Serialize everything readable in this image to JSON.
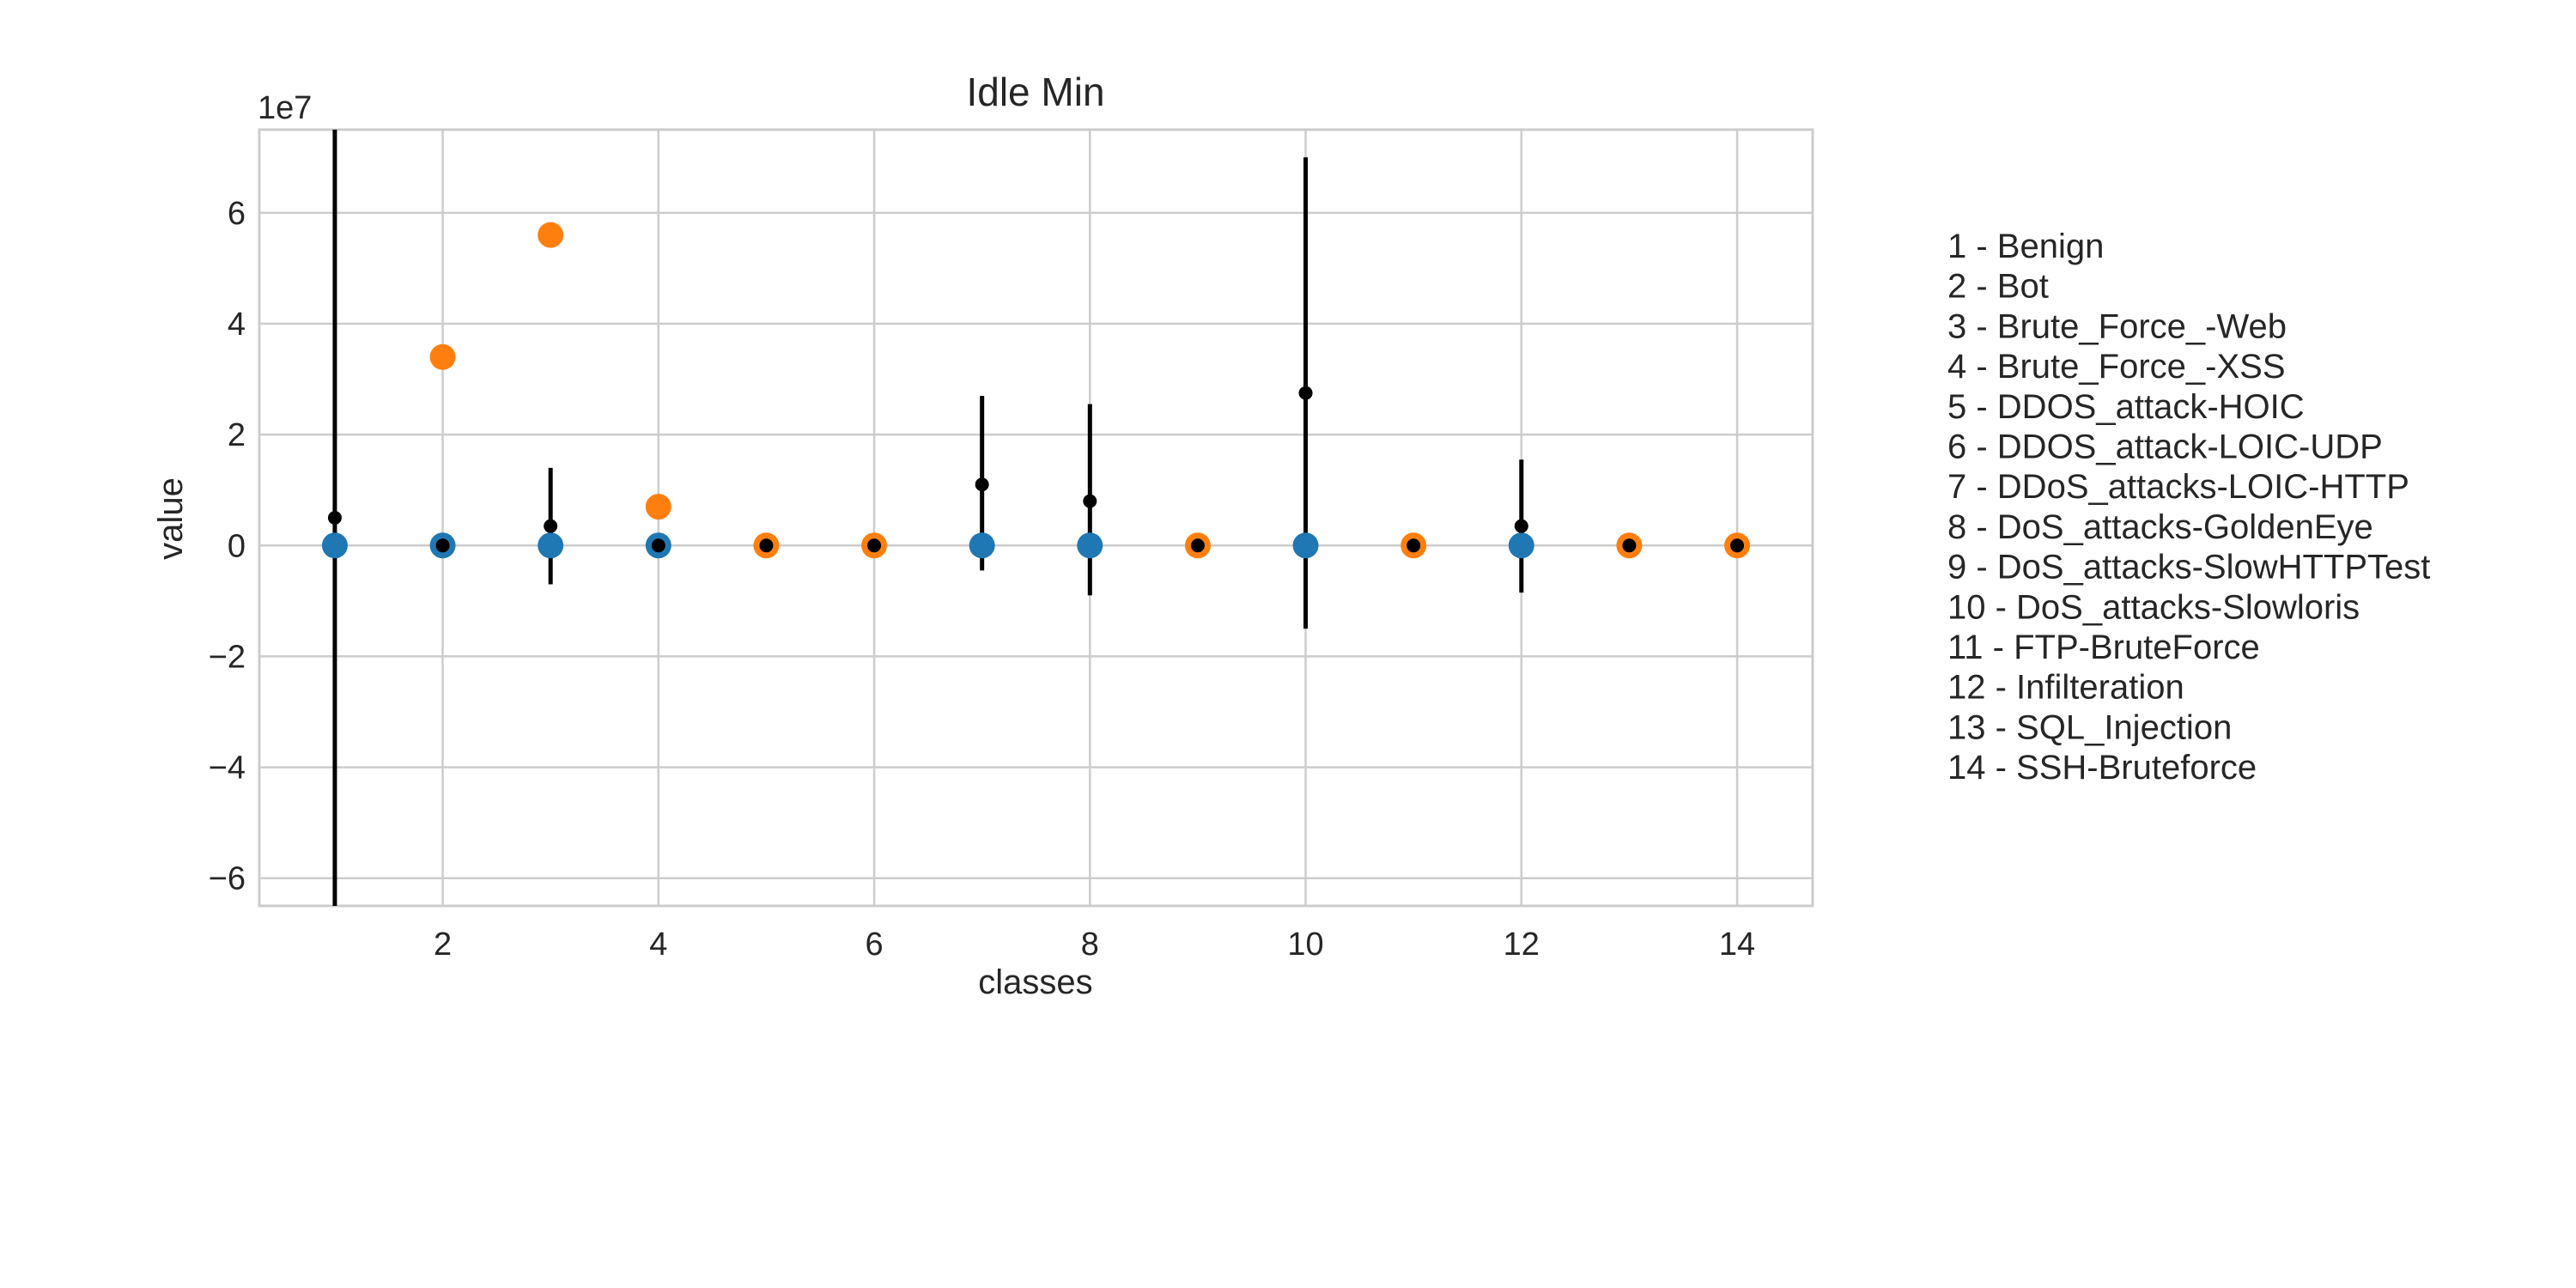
{
  "chart_data": {
    "type": "scatter",
    "title": "Idle Min",
    "xlabel": "classes",
    "ylabel": "value",
    "y_scale_label": "1e7",
    "xlim": [
      0.3,
      14.7
    ],
    "ylim": [
      -6.5,
      7.5
    ],
    "x_ticks": [
      2,
      4,
      6,
      8,
      10,
      12,
      14
    ],
    "x_tick_labels": [
      "2",
      "4",
      "6",
      "8",
      "10",
      "12",
      "14"
    ],
    "y_ticks": [
      -6,
      -4,
      -2,
      0,
      2,
      4,
      6
    ],
    "y_tick_labels": [
      "−6",
      "−4",
      "−2",
      "0",
      "2",
      "4",
      "6"
    ],
    "grid": true,
    "colors": {
      "blue": "#1f77b4",
      "orange": "#ff7f0e",
      "mean": "#000000"
    },
    "points": [
      {
        "x": 1,
        "value": 0.0,
        "color": "blue",
        "mean": 0.5,
        "err_low": -6.5,
        "err_high": 7.5
      },
      {
        "x": 2,
        "value": 3.4,
        "color": "orange",
        "mean": 0.0,
        "err_low": null,
        "err_high": null
      },
      {
        "x": 2,
        "value": 0.0,
        "color": "blue",
        "mean": null,
        "err_low": null,
        "err_high": null
      },
      {
        "x": 3,
        "value": 5.6,
        "color": "orange",
        "mean": 0.35,
        "err_low": -0.7,
        "err_high": 1.4
      },
      {
        "x": 3,
        "value": 0.0,
        "color": "blue",
        "mean": null,
        "err_low": null,
        "err_high": null
      },
      {
        "x": 4,
        "value": 0.7,
        "color": "orange",
        "mean": 0.0,
        "err_low": null,
        "err_high": null
      },
      {
        "x": 4,
        "value": 0.0,
        "color": "blue",
        "mean": null,
        "err_low": null,
        "err_high": null
      },
      {
        "x": 5,
        "value": 0.0,
        "color": "orange",
        "mean": 0.0,
        "err_low": null,
        "err_high": null
      },
      {
        "x": 6,
        "value": 0.0,
        "color": "orange",
        "mean": 0.0,
        "err_low": null,
        "err_high": null
      },
      {
        "x": 7,
        "value": 0.0,
        "color": "blue",
        "mean": 1.1,
        "err_low": -0.45,
        "err_high": 2.7
      },
      {
        "x": 8,
        "value": 0.0,
        "color": "blue",
        "mean": 0.8,
        "err_low": -0.9,
        "err_high": 2.55
      },
      {
        "x": 9,
        "value": 0.0,
        "color": "orange",
        "mean": 0.0,
        "err_low": null,
        "err_high": null
      },
      {
        "x": 10,
        "value": 0.0,
        "color": "blue",
        "mean": 2.75,
        "err_low": -1.5,
        "err_high": 7.0
      },
      {
        "x": 11,
        "value": 0.0,
        "color": "orange",
        "mean": 0.0,
        "err_low": null,
        "err_high": null
      },
      {
        "x": 12,
        "value": 0.0,
        "color": "blue",
        "mean": 0.35,
        "err_low": -0.85,
        "err_high": 1.55
      },
      {
        "x": 13,
        "value": 0.0,
        "color": "orange",
        "mean": 0.0,
        "err_low": null,
        "err_high": null
      },
      {
        "x": 14,
        "value": 0.0,
        "color": "orange",
        "mean": 0.0,
        "err_low": null,
        "err_high": null
      }
    ],
    "legend": [
      "1 - Benign",
      "2 - Bot",
      "3 - Brute_Force_-Web",
      "4 - Brute_Force_-XSS",
      "5 - DDOS_attack-HOIC",
      "6 - DDOS_attack-LOIC-UDP",
      "7 - DDoS_attacks-LOIC-HTTP",
      "8 - DoS_attacks-GoldenEye",
      "9 - DoS_attacks-SlowHTTPTest",
      "10 - DoS_attacks-Slowloris",
      "11 - FTP-BruteForce",
      "12 - Infilteration",
      "13 - SQL_Injection",
      "14 - SSH-Bruteforce"
    ],
    "legend_placement": "right"
  }
}
